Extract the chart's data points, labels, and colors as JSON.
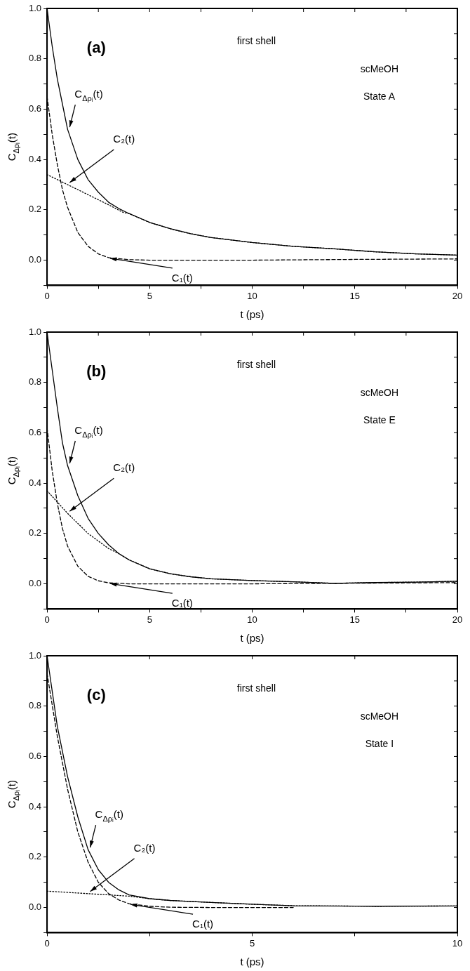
{
  "chart_data": [
    {
      "type": "line",
      "xlabel": "t (ps)",
      "ylabel": "C$_{Δρᵢ}$(t)",
      "grid": false,
      "marker": "none",
      "annotations": [
        "(a)",
        "first shell",
        "scMeOH",
        "State A"
      ],
      "xlim": [
        0,
        20
      ],
      "ylim": [
        -0.1,
        1.0
      ],
      "xticks": [
        0,
        {
          "value": 2.5,
          "label": null
        },
        5,
        {
          "value": 7.5,
          "label": null
        },
        10,
        {
          "value": 12.5,
          "label": null
        },
        15,
        {
          "value": 17.5,
          "label": null
        },
        20
      ],
      "yticks": [
        {
          "value": -0.1,
          "label": null
        },
        {
          "value": 0,
          "label": "0.0"
        },
        {
          "value": 0.1,
          "label": null
        },
        {
          "value": 0.2,
          "label": "0.2"
        },
        {
          "value": 0.3,
          "label": null
        },
        {
          "value": 0.4,
          "label": "0.4"
        },
        {
          "value": 0.5,
          "label": null
        },
        {
          "value": 0.6,
          "label": "0.6"
        },
        {
          "value": 0.7,
          "label": null
        },
        {
          "value": 0.8,
          "label": "0.8"
        },
        {
          "value": 0.9,
          "label": null
        },
        {
          "value": 1.0,
          "label": "1.0"
        }
      ],
      "series": [
        {
          "name": "C$_{Δρᵢ}$(t)",
          "color": "#000000",
          "line_style": "solid",
          "x": [
            0,
            0.25,
            0.5,
            0.75,
            1,
            1.5,
            2,
            2.5,
            3,
            3.5,
            4,
            5,
            6,
            7,
            8,
            10,
            12,
            14,
            16,
            18,
            20
          ],
          "values": [
            1.0,
            0.85,
            0.72,
            0.62,
            0.52,
            0.4,
            0.32,
            0.27,
            0.23,
            0.205,
            0.185,
            0.15,
            0.125,
            0.105,
            0.09,
            0.07,
            0.055,
            0.045,
            0.033,
            0.025,
            0.02
          ]
        },
        {
          "name": "C₂(t)",
          "color": "#000000",
          "line_style": "dotted",
          "x": [
            0,
            1,
            2,
            3,
            3.7,
            4,
            5,
            6,
            7,
            8,
            10,
            12,
            14,
            16,
            18,
            20
          ],
          "values": [
            0.34,
            0.3,
            0.26,
            0.22,
            0.19,
            0.185,
            0.15,
            0.125,
            0.105,
            0.09,
            0.07,
            0.055,
            0.045,
            0.033,
            0.025,
            0.02
          ]
        },
        {
          "name": "C₁(t)",
          "color": "#000000",
          "line_style": "dashed",
          "x": [
            0,
            0.25,
            0.5,
            0.75,
            1,
            1.5,
            2,
            2.5,
            3,
            4,
            5,
            10,
            15,
            20
          ],
          "values": [
            0.65,
            0.5,
            0.38,
            0.28,
            0.21,
            0.11,
            0.055,
            0.025,
            0.01,
            0.002,
            0,
            0,
            0.003,
            0.005
          ]
        }
      ]
    },
    {
      "type": "line",
      "xlabel": "t (ps)",
      "ylabel": "C$_{Δρᵢ}$(t)",
      "grid": false,
      "marker": "none",
      "annotations": [
        "(b)",
        "first shell",
        "scMeOH",
        "State E"
      ],
      "xlim": [
        0,
        20
      ],
      "ylim": [
        -0.1,
        1.0
      ],
      "xticks": [
        0,
        {
          "value": 2.5,
          "label": null
        },
        5,
        {
          "value": 7.5,
          "label": null
        },
        10,
        {
          "value": 12.5,
          "label": null
        },
        15,
        {
          "value": 17.5,
          "label": null
        },
        20
      ],
      "yticks": [
        {
          "value": -0.1,
          "label": null
        },
        {
          "value": 0,
          "label": "0.0"
        },
        {
          "value": 0.1,
          "label": null
        },
        {
          "value": 0.2,
          "label": "0.2"
        },
        {
          "value": 0.3,
          "label": null
        },
        {
          "value": 0.4,
          "label": "0.4"
        },
        {
          "value": 0.5,
          "label": null
        },
        {
          "value": 0.6,
          "label": "0.6"
        },
        {
          "value": 0.7,
          "label": null
        },
        {
          "value": 0.8,
          "label": "0.8"
        },
        {
          "value": 0.9,
          "label": null
        },
        {
          "value": 1.0,
          "label": "1.0"
        }
      ],
      "series": [
        {
          "name": "C$_{Δρᵢ}$(t)",
          "color": "#000000",
          "line_style": "solid",
          "x": [
            0,
            0.25,
            0.5,
            0.75,
            1,
            1.5,
            2,
            2.5,
            3,
            3.5,
            4,
            5,
            6,
            7,
            8,
            10,
            12,
            14,
            16,
            18,
            20
          ],
          "values": [
            1.0,
            0.85,
            0.7,
            0.56,
            0.47,
            0.35,
            0.26,
            0.2,
            0.155,
            0.12,
            0.095,
            0.06,
            0.04,
            0.028,
            0.02,
            0.013,
            0.008,
            0.002,
            0.005,
            0.007,
            0.01
          ]
        },
        {
          "name": "C₂(t)",
          "color": "#000000",
          "line_style": "dotted",
          "x": [
            0,
            1,
            2,
            3,
            3.5,
            4,
            5,
            6,
            7,
            8,
            10,
            12,
            14,
            16,
            18,
            20
          ],
          "values": [
            0.37,
            0.28,
            0.2,
            0.14,
            0.12,
            0.095,
            0.06,
            0.04,
            0.028,
            0.02,
            0.013,
            0.008,
            0.002,
            0.005,
            0.007,
            0.01
          ]
        },
        {
          "name": "C₁(t)",
          "color": "#000000",
          "line_style": "dashed",
          "x": [
            0,
            0.25,
            0.5,
            0.75,
            1,
            1.5,
            2,
            2.5,
            3,
            4,
            10,
            20
          ],
          "values": [
            0.62,
            0.45,
            0.32,
            0.22,
            0.15,
            0.07,
            0.03,
            0.012,
            0.004,
            0,
            0,
            0.005
          ]
        }
      ]
    },
    {
      "type": "line",
      "xlabel": "t (ps)",
      "ylabel": "C$_{Δρᵢ}$(t)",
      "grid": false,
      "marker": "none",
      "annotations": [
        "(c)",
        "first shell",
        "scMeOH",
        "State I"
      ],
      "xlim": [
        0,
        10
      ],
      "ylim": [
        -0.1,
        1.0
      ],
      "xticks": [
        0,
        {
          "value": 2.5,
          "label": null
        },
        5,
        {
          "value": 7.5,
          "label": null
        },
        10
      ],
      "yticks": [
        {
          "value": -0.1,
          "label": null
        },
        {
          "value": 0,
          "label": "0.0"
        },
        {
          "value": 0.1,
          "label": null
        },
        {
          "value": 0.2,
          "label": "0.2"
        },
        {
          "value": 0.3,
          "label": null
        },
        {
          "value": 0.4,
          "label": "0.4"
        },
        {
          "value": 0.5,
          "label": null
        },
        {
          "value": 0.6,
          "label": "0.6"
        },
        {
          "value": 0.7,
          "label": null
        },
        {
          "value": 0.8,
          "label": "0.8"
        },
        {
          "value": 0.9,
          "label": null
        },
        {
          "value": 1.0,
          "label": "1.0"
        }
      ],
      "series": [
        {
          "name": "C$_{Δρᵢ}$(t)",
          "color": "#000000",
          "line_style": "solid",
          "x": [
            0,
            0.25,
            0.5,
            0.75,
            1,
            1.25,
            1.5,
            1.75,
            2,
            2.5,
            3,
            4,
            5,
            6,
            8,
            10
          ],
          "values": [
            1.0,
            0.72,
            0.52,
            0.36,
            0.23,
            0.15,
            0.1,
            0.07,
            0.05,
            0.035,
            0.028,
            0.02,
            0.013,
            0.007,
            0.005,
            0.006
          ]
        },
        {
          "name": "C₂(t)",
          "color": "#000000",
          "line_style": "dotted",
          "x": [
            0,
            1,
            2,
            2.5,
            3,
            4,
            5,
            6,
            8,
            10
          ],
          "values": [
            0.065,
            0.055,
            0.045,
            0.035,
            0.028,
            0.02,
            0.013,
            0.007,
            0.005,
            0.006
          ]
        },
        {
          "name": "C₁(t)",
          "color": "#000000",
          "line_style": "dashed",
          "x": [
            0,
            0.25,
            0.5,
            0.75,
            1,
            1.25,
            1.5,
            1.75,
            2,
            2.5,
            3,
            4,
            6
          ],
          "values": [
            0.93,
            0.68,
            0.47,
            0.3,
            0.18,
            0.1,
            0.055,
            0.03,
            0.015,
            0.005,
            0.001,
            0,
            0
          ]
        }
      ]
    }
  ]
}
